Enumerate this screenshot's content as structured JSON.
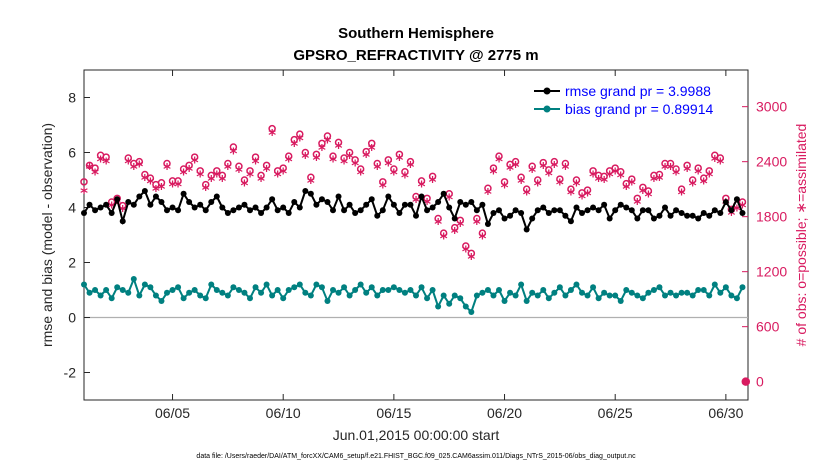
{
  "chart_data": {
    "type": "line",
    "title": "Southern Hemisphere",
    "subtitle": "GPSRO_REFRACTIVITY @ 2775 m",
    "xlabel": "Jun.01,2015 00:00:00 start",
    "ylabel": "rmse and bias (model - observation)",
    "y2label": "# of obs: o=possible; ∗=assimilated",
    "footer": "data file: /Users/raeder/DAI/ATM_forcXX/CAM6_setup/f.e21.FHIST_BGC.f09_025.CAM6assim.011/Diags_NTrS_2015-06/obs_diag_output.nc",
    "xlim": [
      1.0,
      31.0
    ],
    "ylim": [
      -3,
      9
    ],
    "y2lim": [
      -200,
      3400
    ],
    "x_tick_values": [
      5,
      10,
      15,
      20,
      25,
      30
    ],
    "x_tick_labels": [
      "06/05",
      "06/10",
      "06/15",
      "06/20",
      "06/25",
      "06/30"
    ],
    "y_tick_values": [
      -2,
      0,
      2,
      4,
      6,
      8
    ],
    "y_tick_labels": [
      "-2",
      "0",
      "2",
      "4",
      "6",
      "8"
    ],
    "y2_tick_values": [
      0,
      600,
      1200,
      1800,
      2400,
      3000
    ],
    "y2_tick_labels": [
      "0",
      "600",
      "1200",
      "1800",
      "2400",
      "3000"
    ],
    "zero_line": 0,
    "x": [
      1.0,
      1.25,
      1.5,
      1.75,
      2.0,
      2.25,
      2.5,
      2.75,
      3.0,
      3.25,
      3.5,
      3.75,
      4.0,
      4.25,
      4.5,
      4.75,
      5.0,
      5.25,
      5.5,
      5.75,
      6.0,
      6.25,
      6.5,
      6.75,
      7.0,
      7.25,
      7.5,
      7.75,
      8.0,
      8.25,
      8.5,
      8.75,
      9.0,
      9.25,
      9.5,
      9.75,
      10.0,
      10.25,
      10.5,
      10.75,
      11.0,
      11.25,
      11.5,
      11.75,
      12.0,
      12.25,
      12.5,
      12.75,
      13.0,
      13.25,
      13.5,
      13.75,
      14.0,
      14.25,
      14.5,
      14.75,
      15.0,
      15.25,
      15.5,
      15.75,
      16.0,
      16.25,
      16.5,
      16.75,
      17.0,
      17.25,
      17.5,
      17.75,
      18.0,
      18.25,
      18.5,
      18.75,
      19.0,
      19.25,
      19.5,
      19.75,
      20.0,
      20.25,
      20.5,
      20.75,
      21.0,
      21.25,
      21.5,
      21.75,
      22.0,
      22.25,
      22.5,
      22.75,
      23.0,
      23.25,
      23.5,
      23.75,
      24.0,
      24.25,
      24.5,
      24.75,
      25.0,
      25.25,
      25.5,
      25.75,
      26.0,
      26.25,
      26.5,
      26.75,
      27.0,
      27.25,
      27.5,
      27.75,
      28.0,
      28.25,
      28.5,
      28.75,
      29.0,
      29.25,
      29.5,
      29.75,
      30.0,
      30.25,
      30.5,
      30.75
    ],
    "series": [
      {
        "name": "rmse grand pr = 3.9988",
        "color": "#000000",
        "marker": "circle",
        "values": [
          3.8,
          4.1,
          3.9,
          4.0,
          4.1,
          3.8,
          4.3,
          3.5,
          4.2,
          4.1,
          4.4,
          4.6,
          4.1,
          4.4,
          4.2,
          3.9,
          4.0,
          3.9,
          4.5,
          4.2,
          4.0,
          4.1,
          3.9,
          4.2,
          4.4,
          4.0,
          3.8,
          3.9,
          4.0,
          4.1,
          3.9,
          4.0,
          3.8,
          4.0,
          4.3,
          3.9,
          4.0,
          3.8,
          4.2,
          4.0,
          4.6,
          4.5,
          4.1,
          4.3,
          4.2,
          3.9,
          4.4,
          3.9,
          4.1,
          3.8,
          3.9,
          4.1,
          4.3,
          3.7,
          3.9,
          4.4,
          4.1,
          3.8,
          4.1,
          4.1,
          3.7,
          4.4,
          3.9,
          4.0,
          4.2,
          4.5,
          4.0,
          3.6,
          4.2,
          4.1,
          4.2,
          3.9,
          4.1,
          3.4,
          3.8,
          3.9,
          3.6,
          3.7,
          3.9,
          3.8,
          3.2,
          3.6,
          3.9,
          4.0,
          3.8,
          3.9,
          3.9,
          3.7,
          3.5,
          4.0,
          3.8,
          3.9,
          4.0,
          3.9,
          4.1,
          3.6,
          3.9,
          4.1,
          4.0,
          3.9,
          3.6,
          3.9,
          3.9,
          3.6,
          3.7,
          4.0,
          3.7,
          3.9,
          3.8,
          3.7,
          3.7,
          3.6,
          3.8,
          3.7,
          3.9,
          3.8,
          4.2,
          3.9,
          4.3,
          3.8
        ]
      },
      {
        "name": "bias grand pr = 0.89914",
        "color": "#008080",
        "marker": "circle",
        "values": [
          1.2,
          0.9,
          1.0,
          0.8,
          1.0,
          0.7,
          1.1,
          1.0,
          0.9,
          1.4,
          0.8,
          1.2,
          1.1,
          0.8,
          0.6,
          0.9,
          1.0,
          1.1,
          0.7,
          0.9,
          1.0,
          0.8,
          0.7,
          1.2,
          1.0,
          0.9,
          0.8,
          1.1,
          1.0,
          0.9,
          0.7,
          1.1,
          0.9,
          1.2,
          0.8,
          1.0,
          0.7,
          1.0,
          1.1,
          1.2,
          0.9,
          0.8,
          1.2,
          1.1,
          0.6,
          1.0,
          0.9,
          1.1,
          0.8,
          1.0,
          1.2,
          0.9,
          1.1,
          0.8,
          1.0,
          1.0,
          1.1,
          1.0,
          0.9,
          1.0,
          0.8,
          1.1,
          0.7,
          1.0,
          0.4,
          0.8,
          0.5,
          0.8,
          0.7,
          0.4,
          0.2,
          0.8,
          0.9,
          1.0,
          0.8,
          1.0,
          0.6,
          0.9,
          0.8,
          1.2,
          0.6,
          0.9,
          0.8,
          1.0,
          0.7,
          0.9,
          1.1,
          0.8,
          1.0,
          1.2,
          0.9,
          0.8,
          1.1,
          0.7,
          0.9,
          0.8,
          0.8,
          0.6,
          1.0,
          0.9,
          0.8,
          0.7,
          0.9,
          1.0,
          1.1,
          0.8,
          0.9,
          0.8,
          0.9,
          0.9,
          0.8,
          1.0,
          1.0,
          0.8,
          1.2,
          0.9,
          1.1,
          0.8,
          0.7,
          1.1
        ]
      }
    ],
    "obs_possible": {
      "name": "possible",
      "color": "#d81b60",
      "marker": "o",
      "values": [
        2180,
        2360,
        2330,
        2470,
        2450,
        1960,
        2000,
        1920,
        2440,
        2380,
        2400,
        2260,
        2220,
        2150,
        2170,
        2380,
        2190,
        2190,
        2320,
        2360,
        2450,
        2300,
        2150,
        2250,
        2300,
        2250,
        2380,
        2560,
        2350,
        2200,
        2300,
        2450,
        2250,
        2360,
        2760,
        2300,
        2330,
        2460,
        2640,
        2700,
        2500,
        2230,
        2480,
        2600,
        2680,
        2460,
        2610,
        2440,
        2500,
        2420,
        2320,
        2510,
        2600,
        2380,
        2180,
        2420,
        2320,
        2480,
        2290,
        2400,
        2020,
        2190,
        2000,
        2240,
        1780,
        1620,
        2050,
        1680,
        1760,
        1480,
        1400,
        1780,
        1620,
        2110,
        2330,
        2460,
        2180,
        2370,
        2400,
        2230,
        2100,
        2350,
        2200,
        2390,
        2310,
        2400,
        2210,
        2380,
        2100,
        2200,
        2060,
        2090,
        2300,
        2250,
        2240,
        2300,
        2330,
        2290,
        2160,
        2210,
        2000,
        2120,
        2080,
        2250,
        2260,
        2380,
        2380,
        2320,
        2100,
        2360,
        2200,
        2330,
        2220,
        2300,
        2470,
        2440,
        2000,
        1880,
        1930,
        1960
      ]
    },
    "obs_assimilated": {
      "name": "assimilated",
      "color": "#d81b60",
      "marker": "*",
      "values": [
        2060,
        2320,
        2260,
        2400,
        2380,
        1900,
        1950,
        1860,
        2380,
        2320,
        2350,
        2200,
        2160,
        2080,
        2100,
        2320,
        2130,
        2130,
        2260,
        2300,
        2390,
        2240,
        2090,
        2190,
        2240,
        2190,
        2320,
        2490,
        2290,
        2140,
        2240,
        2380,
        2190,
        2300,
        2690,
        2240,
        2270,
        2400,
        2570,
        2630,
        2440,
        2170,
        2420,
        2530,
        2610,
        2400,
        2550,
        2380,
        2440,
        2360,
        2260,
        2450,
        2530,
        2320,
        2120,
        2360,
        2260,
        2420,
        2230,
        2340,
        1960,
        2130,
        1940,
        2180,
        1720,
        1560,
        1990,
        1620,
        1700,
        1420,
        1340,
        1720,
        1560,
        2050,
        2270,
        2400,
        2120,
        2310,
        2340,
        2170,
        2040,
        2290,
        2140,
        2330,
        2250,
        2340,
        2150,
        2320,
        2040,
        2140,
        2000,
        2030,
        2240,
        2190,
        2180,
        2240,
        2270,
        2230,
        2100,
        2150,
        1940,
        2060,
        2020,
        2190,
        2200,
        2320,
        2320,
        2260,
        2040,
        2300,
        2140,
        2270,
        2160,
        2240,
        2410,
        2380,
        1940,
        1820,
        1870,
        1900
      ]
    },
    "zero_count_marker": {
      "x": 30.9,
      "value": 0
    }
  }
}
